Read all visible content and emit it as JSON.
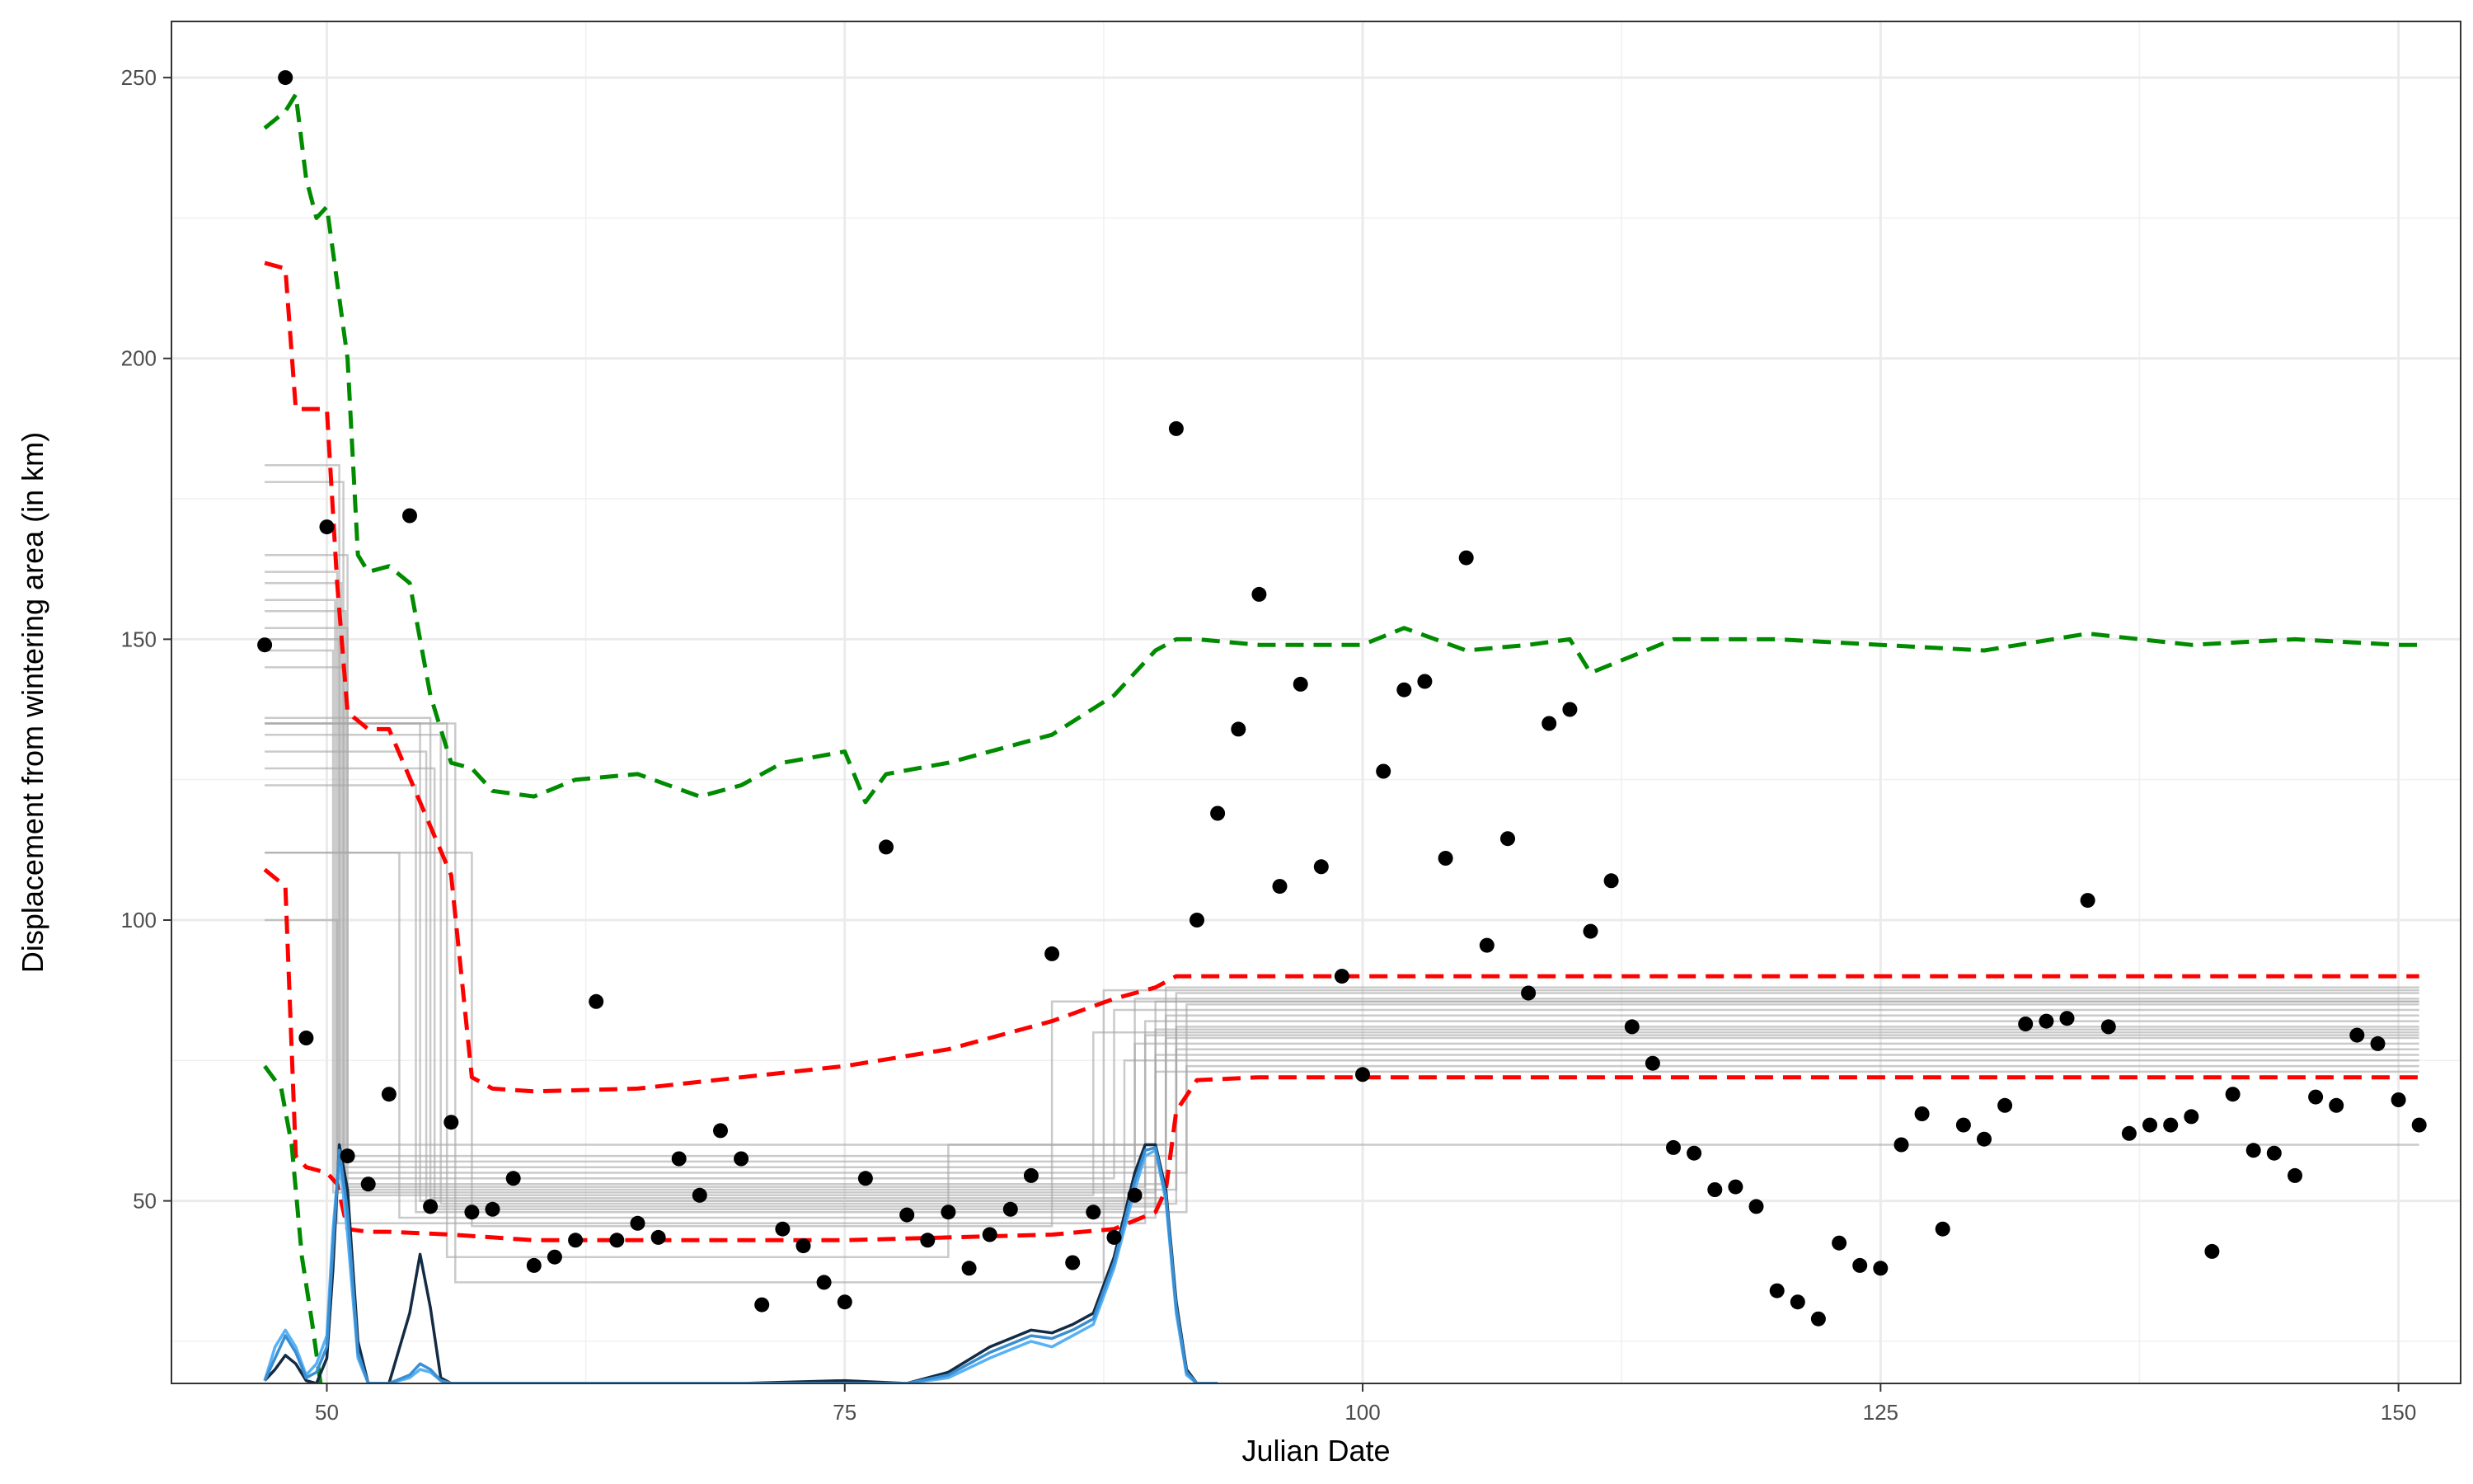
{
  "chart_data": {
    "type": "scatter",
    "title": "",
    "xlabel": "Julian Date",
    "ylabel": "Displacement from wintering area (in km)",
    "xlim": [
      42.5,
      153
    ],
    "ylim": [
      17.5,
      260
    ],
    "x_ticks": [
      50,
      75,
      100,
      125,
      150
    ],
    "y_ticks": [
      50,
      100,
      150,
      200,
      250
    ],
    "x_tick_labels": [
      "50",
      "75",
      "100",
      "125",
      "150"
    ],
    "y_tick_labels": [
      "50",
      "100",
      "150",
      "200",
      "250"
    ],
    "grid": true,
    "legend": "none",
    "colors": {
      "points": "#000000",
      "red_band": "#ff0000",
      "green_band": "#008b00",
      "step_lines": "#a6a6a6",
      "density_dark": "#132b43",
      "density_light": "#56b1f7",
      "density_mid": "#3a8fd3"
    },
    "points": {
      "x": [
        47,
        48,
        49,
        50,
        51,
        52,
        53,
        54,
        55,
        56,
        57,
        58,
        59,
        60,
        61,
        62,
        63,
        64,
        65,
        66,
        67,
        68,
        69,
        70,
        71,
        72,
        73,
        74,
        75,
        76,
        77,
        78,
        79,
        80,
        81,
        82,
        83,
        84,
        85,
        86,
        87,
        88,
        89,
        91,
        92,
        93,
        94,
        95,
        96,
        97,
        98,
        99,
        100,
        101,
        102,
        103,
        104,
        105,
        106,
        107,
        108,
        109,
        110,
        111,
        112,
        113,
        114,
        115,
        116,
        117,
        118,
        119,
        120,
        121,
        122,
        123,
        124,
        125,
        126,
        127,
        128,
        129,
        130,
        131,
        132,
        133,
        134,
        135,
        136,
        137,
        138,
        139,
        140,
        141,
        142,
        143,
        144,
        145,
        146,
        147,
        148,
        149,
        150,
        151
      ],
      "y": [
        149,
        250,
        79,
        170,
        58,
        53,
        69,
        172,
        49,
        64,
        48,
        48.5,
        54,
        38.5,
        40,
        43,
        85.5,
        43,
        46,
        43.5,
        57.5,
        51,
        62.5,
        57.5,
        31.5,
        45,
        42,
        35.5,
        32,
        54,
        113,
        47.5,
        43,
        48,
        38,
        44,
        48.5,
        54.5,
        94,
        39,
        48,
        43.5,
        51,
        187.5,
        100,
        119,
        134,
        158,
        106,
        142,
        109.5,
        90,
        72.5,
        126.5,
        141,
        142.5,
        111,
        164.5,
        95.5,
        114.5,
        87,
        135,
        137.5,
        98,
        107,
        81,
        74.5,
        59.5,
        58.5,
        52,
        52.5,
        49,
        34,
        32,
        29,
        42.5,
        38.5,
        38,
        60,
        65.5,
        45,
        63.5,
        61,
        67,
        81.5,
        82,
        82.5,
        103.5,
        81,
        62,
        63.5,
        63.5,
        65,
        41,
        69,
        59,
        58.5,
        54.5,
        68.5,
        67,
        79.5,
        78,
        68,
        63.5
      ]
    },
    "series": [
      {
        "name": "",
        "style": "dashed",
        "color": "#ff0000",
        "x": [
          47,
          48,
          48.5,
          49,
          50,
          50.5,
          51,
          52,
          53,
          56,
          57,
          58,
          60,
          65,
          70,
          75,
          80,
          85,
          88,
          90,
          91,
          95,
          100,
          110,
          120,
          130,
          140,
          150,
          151
        ],
        "y": [
          217,
          216,
          191,
          191,
          191,
          160,
          137,
          134,
          134,
          108,
          72,
          70,
          69.5,
          70,
          72,
          74,
          77,
          82,
          86,
          88,
          90,
          90,
          90,
          90,
          90,
          90,
          90,
          90,
          90
        ]
      },
      {
        "name": "",
        "style": "dashed",
        "color": "#ff0000",
        "x": [
          47,
          48,
          48.5,
          49,
          50,
          50.5,
          51,
          52,
          53,
          56,
          60,
          70,
          75,
          80,
          85,
          88,
          89,
          90,
          90.5,
          91,
          92,
          95,
          100,
          110,
          120,
          130,
          140,
          150,
          151
        ],
        "y": [
          109,
          106,
          58,
          56,
          55,
          53,
          45,
          44.5,
          44.5,
          44,
          43,
          43,
          43,
          43.5,
          44,
          45,
          46.5,
          48,
          52,
          66,
          71.5,
          72,
          72,
          72,
          72,
          72,
          72,
          72,
          72
        ]
      },
      {
        "name": "",
        "style": "dashed",
        "color": "#008b00",
        "x": [
          47,
          48,
          48.5,
          49,
          49.5,
          50,
          51,
          51.5,
          52,
          53,
          54,
          55,
          56,
          57,
          58,
          60,
          62,
          65,
          68,
          70,
          72,
          75,
          76,
          77,
          80,
          83,
          85,
          88,
          90,
          91,
          92,
          95,
          100,
          102,
          105,
          108,
          110,
          111,
          115,
          120,
          125,
          130,
          135,
          140,
          145,
          150,
          151
        ],
        "y": [
          241,
          244,
          247,
          232,
          225,
          227,
          200,
          165,
          162,
          163,
          160,
          140,
          128,
          127,
          123,
          122,
          125,
          126,
          122,
          124,
          128,
          130,
          121,
          126,
          128,
          131,
          133,
          140,
          148,
          150,
          150,
          149,
          149,
          152,
          148,
          149,
          150,
          144,
          150,
          150,
          149,
          148,
          151,
          149,
          150,
          149,
          149
        ]
      },
      {
        "name": "",
        "style": "dashed",
        "color": "#008b00",
        "x": [
          47,
          47.8,
          48.3,
          48.8,
          49.3,
          49.7
        ],
        "y": [
          74,
          70,
          60,
          40,
          28,
          17.5
        ]
      }
    ],
    "step_paths": [
      {
        "y_start": 181,
        "x_jump1": 50.6,
        "y_mid": 60,
        "x_jump2": 90.5,
        "y_end": 88
      },
      {
        "y_start": 178,
        "x_jump1": 50.8,
        "y_mid": 58,
        "x_jump2": 91,
        "y_end": 87
      },
      {
        "y_start": 165,
        "x_jump1": 51,
        "y_mid": 57,
        "x_jump2": 89,
        "y_end": 86
      },
      {
        "y_start": 162,
        "x_jump1": 50.5,
        "y_mid": 56,
        "x_jump2": 90,
        "y_end": 85.5
      },
      {
        "y_start": 160,
        "x_jump1": 50.7,
        "y_mid": 55,
        "x_jump2": 91.5,
        "y_end": 85
      },
      {
        "y_start": 157,
        "x_jump1": 50.4,
        "y_mid": 54,
        "x_jump2": 88,
        "y_end": 84
      },
      {
        "y_start": 155,
        "x_jump1": 50.9,
        "y_mid": 53,
        "x_jump2": 90.5,
        "y_end": 83
      },
      {
        "y_start": 152,
        "x_jump1": 51,
        "y_mid": 52.5,
        "x_jump2": 89.5,
        "y_end": 82
      },
      {
        "y_start": 150,
        "x_jump1": 50.6,
        "y_mid": 52,
        "x_jump2": 91,
        "y_end": 81
      },
      {
        "y_start": 148,
        "x_jump1": 50.3,
        "y_mid": 51.5,
        "x_jump2": 90,
        "y_end": 80.5
      },
      {
        "y_start": 145,
        "x_jump1": 50.8,
        "y_mid": 51,
        "x_jump2": 87,
        "y_end": 80
      },
      {
        "y_start": 136,
        "x_jump1": 55,
        "y_mid": 50.5,
        "x_jump2": 90.5,
        "y_end": 79
      },
      {
        "y_start": 135,
        "x_jump1": 54.5,
        "y_mid": 50,
        "x_jump2": 89,
        "y_end": 78
      },
      {
        "y_start": 133,
        "x_jump1": 55.5,
        "y_mid": 49.5,
        "x_jump2": 91,
        "y_end": 77
      },
      {
        "y_start": 130,
        "x_jump1": 54.8,
        "y_mid": 49,
        "x_jump2": 90,
        "y_end": 76
      },
      {
        "y_start": 127,
        "x_jump1": 55.2,
        "y_mid": 48.5,
        "x_jump2": 88.5,
        "y_end": 75
      },
      {
        "y_start": 124,
        "x_jump1": 54.3,
        "y_mid": 48,
        "x_jump2": 91.5,
        "y_end": 74
      },
      {
        "y_start": 112,
        "x_jump1": 53.5,
        "y_mid": 47,
        "x_jump2": 90,
        "y_end": 73
      },
      {
        "y_start": 112,
        "x_jump1": 57,
        "y_mid": 45.5,
        "x_jump2": 85,
        "y_end": 85.5
      },
      {
        "y_start": 100,
        "x_jump1": 50.5,
        "y_mid": 46,
        "x_jump2": 89.5,
        "y_end": 79.5
      },
      {
        "y_start": 135,
        "x_jump1": 56.2,
        "y_mid": 35.5,
        "x_jump2": 87.5,
        "y_end": 87.5
      },
      {
        "y_start": 135,
        "x_jump1": 55.8,
        "y_mid": 40,
        "x_jump2": 80,
        "y_end": 60
      }
    ],
    "density_curves": [
      {
        "name": "",
        "color": "#132b43",
        "x": [
          47,
          47.5,
          48,
          48.5,
          49,
          49.5,
          50,
          50.3,
          50.6,
          51,
          51.5,
          52,
          53,
          54,
          54.5,
          55,
          55.5,
          56,
          58,
          60,
          70,
          75,
          78,
          80,
          82,
          84,
          85,
          86,
          87,
          88,
          89,
          89.5,
          90,
          90.5,
          91,
          91.5,
          92,
          93
        ],
        "y": [
          18,
          20,
          22.5,
          21,
          18,
          17.5,
          22,
          38,
          60,
          52,
          25,
          17.5,
          17.5,
          30,
          40.5,
          31,
          18.5,
          17.5,
          17.5,
          17.5,
          17.5,
          18,
          17.5,
          19.5,
          24,
          27,
          26.5,
          28,
          30,
          40,
          55,
          60,
          60,
          52,
          32,
          20,
          17.5,
          17.5
        ]
      },
      {
        "name": "",
        "color": "#56b1f7",
        "x": [
          47,
          47.5,
          48,
          48.5,
          49,
          49.5,
          50,
          50.3,
          50.6,
          51,
          51.5,
          52,
          53,
          54,
          54.5,
          55,
          55.5,
          56,
          58,
          60,
          70,
          75,
          78,
          80,
          82,
          84,
          85,
          86,
          87,
          88,
          89,
          89.5,
          90,
          90.5,
          91,
          91.5,
          92,
          93
        ],
        "y": [
          18,
          24,
          27,
          24,
          19,
          21,
          26,
          45,
          58,
          44,
          22,
          17.5,
          17.5,
          18.5,
          20,
          19.5,
          18,
          17.5,
          17.5,
          17.5,
          17.5,
          17.5,
          17.5,
          18.5,
          22,
          25,
          24,
          26,
          28,
          38,
          52,
          58,
          59,
          50,
          30,
          19,
          17.5,
          17.5
        ]
      },
      {
        "name": "",
        "color": "#3a8fd3",
        "x": [
          47,
          47.5,
          48,
          48.5,
          49,
          49.5,
          50,
          50.3,
          50.6,
          51,
          51.5,
          52,
          53,
          54,
          54.5,
          55,
          55.5,
          56,
          58,
          60,
          70,
          75,
          78,
          80,
          82,
          84,
          85,
          86,
          87,
          88,
          89,
          89.5,
          90,
          90.5,
          91,
          91.5,
          92,
          93
        ],
        "y": [
          18,
          22,
          26,
          23,
          18.5,
          19.5,
          24,
          42,
          59,
          48,
          23,
          17.5,
          17.5,
          19,
          21,
          20,
          18,
          17.5,
          17.5,
          17.5,
          17.5,
          17.5,
          17.5,
          19,
          23,
          26,
          25.5,
          27,
          29,
          39,
          53.5,
          59,
          59.5,
          51,
          31,
          19.5,
          17.5,
          17.5
        ]
      }
    ]
  }
}
